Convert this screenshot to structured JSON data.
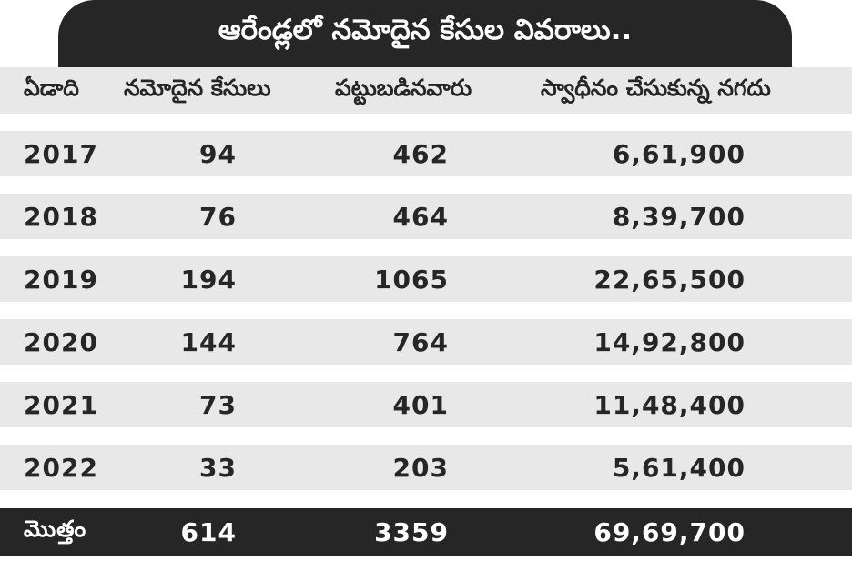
{
  "title": "ఆరేండ్లలో నమోదైన కేసుల వివరాలు..",
  "columns": {
    "year": "ఏడాది",
    "cases": "నమోదైన కేసులు",
    "caught": "పట్టుబడినవారు",
    "cash": "స్వాధీనం చేసుకున్న నగదు"
  },
  "rows": [
    {
      "year": "2017",
      "cases": "94",
      "caught": "462",
      "cash": "6,61,900"
    },
    {
      "year": "2018",
      "cases": "76",
      "caught": "464",
      "cash": "8,39,700"
    },
    {
      "year": "2019",
      "cases": "194",
      "caught": "1065",
      "cash": "22,65,500"
    },
    {
      "year": "2020",
      "cases": "144",
      "caught": "764",
      "cash": "14,92,800"
    },
    {
      "year": "2021",
      "cases": "73",
      "caught": "401",
      "cash": "11,48,400"
    },
    {
      "year": "2022",
      "cases": "33",
      "caught": "203",
      "cash": "5,61,400"
    }
  ],
  "total": {
    "label": "మొత్తం",
    "cases": "614",
    "caught": "3359",
    "cash": "69,69,700"
  }
}
